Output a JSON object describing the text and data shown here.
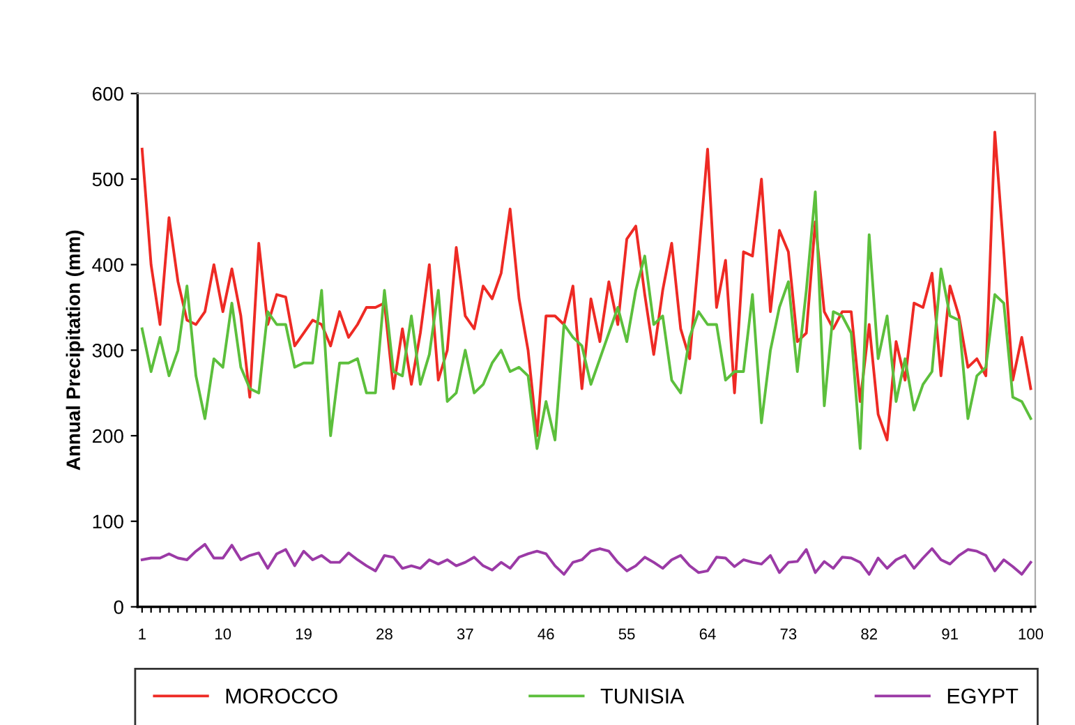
{
  "chart_data": {
    "type": "line",
    "ylabel": "Annual Precipitation (mm)",
    "categories": [
      "1",
      null,
      null,
      null,
      null,
      null,
      null,
      null,
      null,
      "10",
      null,
      null,
      null,
      null,
      null,
      null,
      null,
      null,
      "19",
      null,
      null,
      null,
      null,
      null,
      null,
      null,
      null,
      "28",
      null,
      null,
      null,
      null,
      null,
      null,
      null,
      null,
      "37",
      null,
      null,
      null,
      null,
      null,
      null,
      null,
      null,
      "46",
      null,
      null,
      null,
      null,
      null,
      null,
      null,
      null,
      "55",
      null,
      null,
      null,
      null,
      null,
      null,
      null,
      null,
      "64",
      null,
      null,
      null,
      null,
      null,
      null,
      null,
      null,
      "73",
      null,
      null,
      null,
      null,
      null,
      null,
      null,
      null,
      "82",
      null,
      null,
      null,
      null,
      null,
      null,
      null,
      null,
      "91",
      null,
      null,
      null,
      null,
      null,
      null,
      null,
      null,
      "100"
    ],
    "series": [
      {
        "name": "MOROCCO",
        "color": "#ee2a24",
        "values": [
          535,
          400,
          330,
          455,
          380,
          335,
          330,
          345,
          400,
          345,
          395,
          340,
          245,
          425,
          330,
          365,
          362,
          305,
          320,
          335,
          330,
          305,
          345,
          315,
          330,
          350,
          350,
          355,
          255,
          325,
          260,
          320,
          400,
          265,
          300,
          420,
          340,
          325,
          375,
          360,
          390,
          465,
          360,
          300,
          200,
          340,
          340,
          330,
          375,
          255,
          360,
          310,
          380,
          330,
          430,
          445,
          365,
          295,
          370,
          425,
          325,
          290,
          410,
          535,
          350,
          405,
          250,
          415,
          410,
          500,
          345,
          440,
          415,
          310,
          320,
          450,
          345,
          325,
          345,
          345,
          240,
          330,
          225,
          195,
          310,
          265,
          355,
          350,
          390,
          270,
          375,
          340,
          280,
          290,
          270,
          555,
          415,
          265,
          315,
          255
        ]
      },
      {
        "name": "TUNISIA",
        "color": "#5cbf3c",
        "values": [
          325,
          275,
          315,
          270,
          300,
          375,
          270,
          220,
          290,
          280,
          355,
          280,
          255,
          250,
          345,
          330,
          330,
          280,
          285,
          285,
          370,
          200,
          285,
          285,
          290,
          250,
          250,
          370,
          275,
          270,
          340,
          260,
          295,
          370,
          240,
          250,
          300,
          250,
          260,
          285,
          300,
          275,
          280,
          270,
          185,
          240,
          195,
          330,
          315,
          305,
          260,
          290,
          320,
          350,
          310,
          370,
          410,
          330,
          340,
          265,
          250,
          315,
          345,
          330,
          330,
          265,
          275,
          275,
          365,
          215,
          300,
          350,
          380,
          275,
          370,
          485,
          235,
          345,
          340,
          320,
          185,
          435,
          290,
          340,
          240,
          290,
          230,
          260,
          275,
          395,
          340,
          335,
          220,
          270,
          280,
          365,
          355,
          245,
          240,
          220
        ]
      },
      {
        "name": "EGYPT",
        "color": "#9b3aa6",
        "values": [
          55,
          57,
          57,
          62,
          57,
          55,
          65,
          73,
          57,
          57,
          72,
          55,
          60,
          63,
          45,
          62,
          67,
          48,
          65,
          55,
          60,
          52,
          52,
          63,
          55,
          48,
          42,
          60,
          58,
          45,
          48,
          45,
          55,
          50,
          55,
          48,
          52,
          58,
          48,
          43,
          52,
          45,
          58,
          62,
          65,
          62,
          48,
          38,
          52,
          55,
          65,
          68,
          65,
          52,
          42,
          48,
          58,
          52,
          45,
          55,
          60,
          48,
          40,
          42,
          58,
          57,
          47,
          55,
          52,
          50,
          60,
          40,
          52,
          53,
          67,
          40,
          53,
          45,
          58,
          57,
          52,
          38,
          57,
          45,
          55,
          60,
          45,
          57,
          68,
          55,
          50,
          60,
          67,
          65,
          60,
          42,
          55,
          47,
          38,
          52
        ]
      }
    ],
    "ylim": [
      0,
      600
    ],
    "yticks": [
      0,
      100,
      200,
      300,
      400,
      500,
      600
    ],
    "grid": false,
    "legend": "bottom",
    "marker": "none",
    "line_style": "solid"
  }
}
